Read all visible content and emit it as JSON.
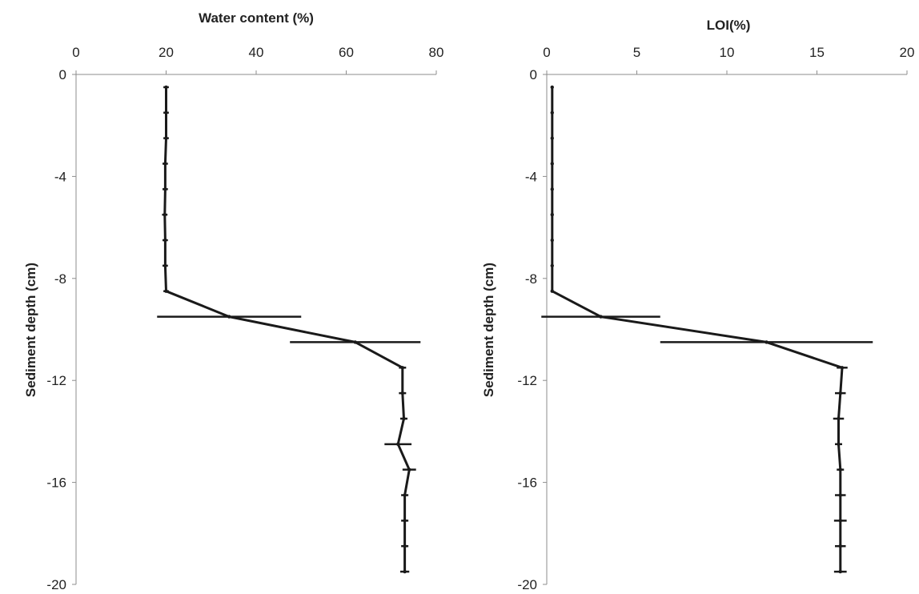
{
  "chart_data": [
    {
      "type": "line",
      "title": "",
      "xlabel": "Water content (%)",
      "ylabel": "Sediment depth (cm)",
      "xlim": [
        0,
        80
      ],
      "ylim": [
        -20,
        0
      ],
      "x_ticks": [
        "0",
        "20",
        "40",
        "60",
        "80"
      ],
      "y_ticks": [
        "0",
        "-4",
        "-8",
        "-12",
        "-16",
        "-20"
      ],
      "x_axis_position": "top",
      "grid": false,
      "legend": "none",
      "line_color": "#1a1a1a",
      "series": [
        {
          "points": [
            {
              "depth": -0.5,
              "x": 20,
              "err": 0.6
            },
            {
              "depth": -1.5,
              "x": 20,
              "err": 0.6
            },
            {
              "depth": -2.5,
              "x": 20,
              "err": 0.6
            },
            {
              "depth": -3.5,
              "x": 19.8,
              "err": 0.6
            },
            {
              "depth": -4.5,
              "x": 19.8,
              "err": 0.6
            },
            {
              "depth": -5.5,
              "x": 19.7,
              "err": 0.6
            },
            {
              "depth": -6.5,
              "x": 19.8,
              "err": 0.6
            },
            {
              "depth": -7.5,
              "x": 19.8,
              "err": 0.6
            },
            {
              "depth": -8.5,
              "x": 20,
              "err": 0.6
            },
            {
              "depth": -9.5,
              "x": 34,
              "err": 16
            },
            {
              "depth": -10.5,
              "x": 62,
              "err": 14.5
            },
            {
              "depth": -11.5,
              "x": 72.5,
              "err": 0.8
            },
            {
              "depth": -12.5,
              "x": 72.5,
              "err": 0.8
            },
            {
              "depth": -13.5,
              "x": 72.8,
              "err": 0.8
            },
            {
              "depth": -14.5,
              "x": 71.5,
              "err": 3
            },
            {
              "depth": -15.5,
              "x": 74,
              "err": 1.5
            },
            {
              "depth": -16.5,
              "x": 73,
              "err": 0.8
            },
            {
              "depth": -17.5,
              "x": 73,
              "err": 0.8
            },
            {
              "depth": -18.5,
              "x": 73,
              "err": 0.8
            },
            {
              "depth": -19.5,
              "x": 73,
              "err": 1
            }
          ]
        }
      ]
    },
    {
      "type": "line",
      "title": "",
      "xlabel": "LOI(%)",
      "ylabel": "Sediment depth (cm)",
      "xlim": [
        0,
        20
      ],
      "ylim": [
        -20,
        0
      ],
      "x_ticks": [
        "0",
        "5",
        "10",
        "15",
        "20"
      ],
      "y_ticks": [
        "0",
        "-4",
        "-8",
        "-12",
        "-16",
        "-20"
      ],
      "x_axis_position": "top",
      "grid": false,
      "legend": "none",
      "line_color": "#1a1a1a",
      "series": [
        {
          "points": [
            {
              "depth": -0.5,
              "x": 0.3,
              "err": 0.05
            },
            {
              "depth": -1.5,
              "x": 0.3,
              "err": 0.05
            },
            {
              "depth": -2.5,
              "x": 0.3,
              "err": 0.05
            },
            {
              "depth": -3.5,
              "x": 0.3,
              "err": 0.05
            },
            {
              "depth": -4.5,
              "x": 0.3,
              "err": 0.05
            },
            {
              "depth": -5.5,
              "x": 0.3,
              "err": 0.05
            },
            {
              "depth": -6.5,
              "x": 0.3,
              "err": 0.05
            },
            {
              "depth": -7.5,
              "x": 0.3,
              "err": 0.05
            },
            {
              "depth": -8.5,
              "x": 0.3,
              "err": 0.05
            },
            {
              "depth": -9.5,
              "x": 3,
              "err": 3.3
            },
            {
              "depth": -10.5,
              "x": 12.2,
              "err": 5.9
            },
            {
              "depth": -11.5,
              "x": 16.4,
              "err": 0.3
            },
            {
              "depth": -12.5,
              "x": 16.3,
              "err": 0.3
            },
            {
              "depth": -13.5,
              "x": 16.2,
              "err": 0.3
            },
            {
              "depth": -14.5,
              "x": 16.2,
              "err": 0.2
            },
            {
              "depth": -15.5,
              "x": 16.3,
              "err": 0.2
            },
            {
              "depth": -16.5,
              "x": 16.3,
              "err": 0.3
            },
            {
              "depth": -17.5,
              "x": 16.3,
              "err": 0.35
            },
            {
              "depth": -18.5,
              "x": 16.3,
              "err": 0.3
            },
            {
              "depth": -19.5,
              "x": 16.3,
              "err": 0.35
            }
          ]
        }
      ]
    }
  ]
}
